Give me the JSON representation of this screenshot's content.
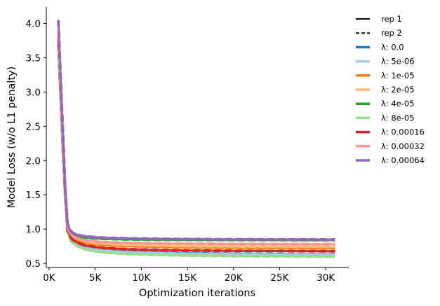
{
  "chart_data": {
    "type": "line",
    "xlabel": "Optimization iterations",
    "ylabel": "Model Loss (w/o L1 penalty)",
    "xlim": [
      -300,
      32500
    ],
    "ylim": [
      0.44,
      4.24
    ],
    "x_ticks": [
      0,
      5000,
      10000,
      15000,
      20000,
      25000,
      30000
    ],
    "x_tick_labels": [
      "0K",
      "5K",
      "10K",
      "15K",
      "20K",
      "25K",
      "30K"
    ],
    "y_ticks": [
      0.5,
      1.0,
      1.5,
      2.0,
      2.5,
      3.0,
      3.5,
      4.0
    ],
    "y_tick_labels": [
      "0.5",
      "1.0",
      "1.5",
      "2.0",
      "2.5",
      "3.0",
      "3.5",
      "4.0"
    ],
    "grid": false,
    "legend_position": "outside-right",
    "legend": [
      {
        "label": "rep 1",
        "color": "#000000",
        "style": "solid"
      },
      {
        "label": "rep 2",
        "color": "#000000",
        "style": "dashed"
      },
      {
        "label": "λ: 0.0",
        "color": "#1f77b4",
        "style": "solid"
      },
      {
        "label": "λ: 5e-06",
        "color": "#aec7e8",
        "style": "solid"
      },
      {
        "label": "λ: 1e-05",
        "color": "#ff7f0e",
        "style": "solid"
      },
      {
        "label": "λ: 2e-05",
        "color": "#ffbb78",
        "style": "solid"
      },
      {
        "label": "λ: 4e-05",
        "color": "#2ca02c",
        "style": "solid"
      },
      {
        "label": "λ: 8e-05",
        "color": "#98df8a",
        "style": "solid"
      },
      {
        "label": "λ: 0.00016",
        "color": "#d62728",
        "style": "solid"
      },
      {
        "label": "λ: 0.00032",
        "color": "#ff9896",
        "style": "solid"
      },
      {
        "label": "λ: 0.00064",
        "color": "#9467bd",
        "style": "solid"
      }
    ],
    "x": [
      1000,
      1250,
      1500,
      1750,
      2000,
      2250,
      2500,
      3000,
      3500,
      4000,
      5000,
      6000,
      8000,
      10000,
      12500,
      15000,
      17500,
      20000,
      22500,
      25000,
      27500,
      30000,
      31000
    ],
    "series": [
      {
        "color": "#1f77b4",
        "values": [
          3.8,
          3.0,
          2.2,
          1.5,
          0.98,
          0.88,
          0.82,
          0.78,
          0.75,
          0.73,
          0.71,
          0.695,
          0.675,
          0.665,
          0.655,
          0.648,
          0.643,
          0.64,
          0.637,
          0.635,
          0.633,
          0.632,
          0.631
        ]
      },
      {
        "color": "#aec7e8",
        "values": [
          3.8,
          3.0,
          2.2,
          1.5,
          0.97,
          0.87,
          0.81,
          0.77,
          0.74,
          0.72,
          0.7,
          0.685,
          0.665,
          0.655,
          0.645,
          0.64,
          0.635,
          0.632,
          0.63,
          0.628,
          0.627,
          0.626,
          0.625
        ]
      },
      {
        "color": "#ff7f0e",
        "values": [
          3.8,
          3.0,
          2.2,
          1.5,
          1.02,
          0.93,
          0.88,
          0.84,
          0.82,
          0.8,
          0.78,
          0.77,
          0.755,
          0.745,
          0.738,
          0.733,
          0.73,
          0.727,
          0.725,
          0.724,
          0.723,
          0.722,
          0.721
        ]
      },
      {
        "color": "#ffbb78",
        "values": [
          3.8,
          3.0,
          2.2,
          1.5,
          1.03,
          0.94,
          0.89,
          0.86,
          0.84,
          0.82,
          0.8,
          0.79,
          0.775,
          0.765,
          0.758,
          0.753,
          0.75,
          0.747,
          0.745,
          0.744,
          0.743,
          0.742,
          0.741
        ]
      },
      {
        "color": "#2ca02c",
        "values": [
          3.7,
          2.95,
          2.15,
          1.5,
          1.06,
          0.97,
          0.93,
          0.9,
          0.885,
          0.875,
          0.865,
          0.858,
          0.852,
          0.848,
          0.845,
          0.843,
          0.842,
          0.841,
          0.84,
          0.84,
          0.839,
          0.839,
          0.839
        ]
      },
      {
        "color": "#98df8a",
        "values": [
          3.8,
          3.0,
          2.2,
          1.5,
          0.96,
          0.86,
          0.8,
          0.76,
          0.725,
          0.7,
          0.675,
          0.66,
          0.64,
          0.63,
          0.622,
          0.615,
          0.61,
          0.607,
          0.604,
          0.602,
          0.6,
          0.599,
          0.598
        ]
      },
      {
        "color": "#d62728",
        "values": [
          3.8,
          3.0,
          2.2,
          1.5,
          1.0,
          0.91,
          0.85,
          0.81,
          0.78,
          0.76,
          0.74,
          0.725,
          0.71,
          0.7,
          0.693,
          0.688,
          0.685,
          0.683,
          0.681,
          0.68,
          0.679,
          0.678,
          0.677
        ]
      },
      {
        "color": "#ff9896",
        "values": [
          3.8,
          3.0,
          2.2,
          1.5,
          1.04,
          0.95,
          0.9,
          0.87,
          0.85,
          0.835,
          0.82,
          0.81,
          0.8,
          0.794,
          0.79,
          0.787,
          0.785,
          0.783,
          0.782,
          0.781,
          0.78,
          0.78,
          0.779
        ]
      },
      {
        "color": "#9467bd",
        "values": [
          4.05,
          3.2,
          2.4,
          1.6,
          1.08,
          0.99,
          0.95,
          0.92,
          0.905,
          0.895,
          0.882,
          0.874,
          0.866,
          0.861,
          0.857,
          0.855,
          0.853,
          0.852,
          0.851,
          0.85,
          0.85,
          0.849,
          0.849
        ]
      }
    ]
  }
}
